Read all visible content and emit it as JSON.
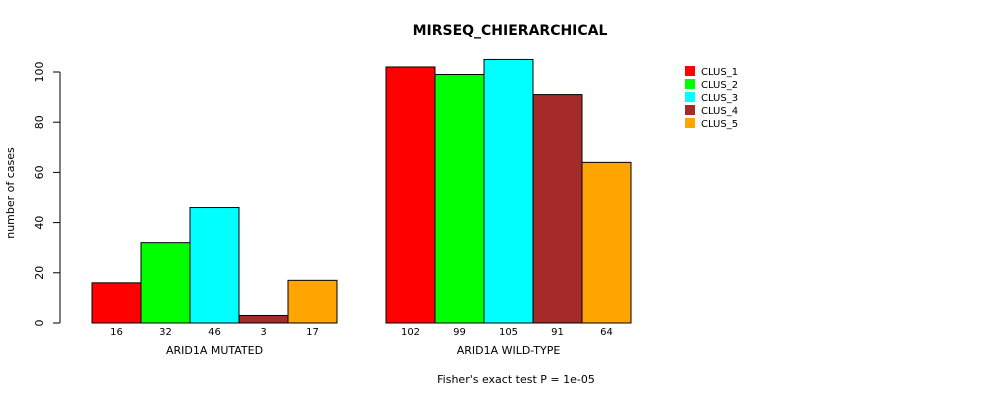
{
  "chart_data": {
    "type": "bar",
    "title": "MIRSEQ_CHIERARCHICAL",
    "ylabel": "number of cases",
    "xlabel": "Fisher's exact test P = 1e-05",
    "ylim": [
      0,
      100
    ],
    "yticks": [
      0,
      20,
      40,
      60,
      80,
      100
    ],
    "groups": [
      "ARID1A MUTATED",
      "ARID1A WILD-TYPE"
    ],
    "series": [
      {
        "name": "CLUS_1",
        "color": "#ff0000",
        "values": [
          16,
          102
        ]
      },
      {
        "name": "CLUS_2",
        "color": "#00ff00",
        "values": [
          32,
          99
        ]
      },
      {
        "name": "CLUS_3",
        "color": "#00ffff",
        "values": [
          46,
          105
        ]
      },
      {
        "name": "CLUS_4",
        "color": "#a52a2a",
        "values": [
          3,
          91
        ]
      },
      {
        "name": "CLUS_5",
        "color": "#ffa500",
        "values": [
          17,
          64
        ]
      }
    ],
    "legend_position": "top-right"
  }
}
